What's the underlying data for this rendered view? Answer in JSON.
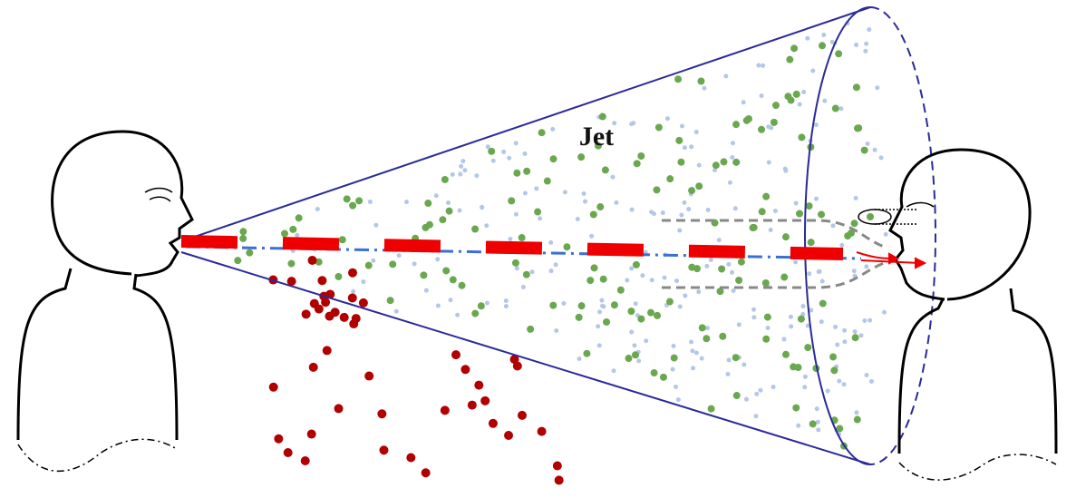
{
  "labels": {
    "jet": "Jet"
  }
}
